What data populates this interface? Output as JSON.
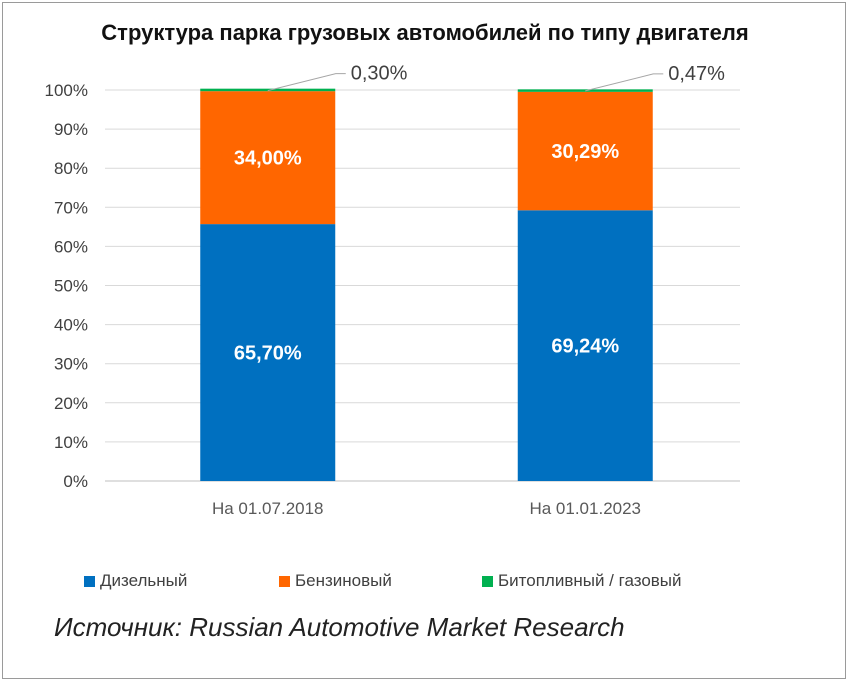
{
  "chart_data": {
    "type": "bar",
    "stacked": true,
    "title": "Структура парка грузовых автомобилей по типу двигателя",
    "categories": [
      "На 01.07.2018",
      "На 01.01.2023"
    ],
    "series": [
      {
        "name": "Дизельный",
        "values": [
          65.7,
          69.24
        ],
        "labels": [
          "65,70%",
          "69,24%"
        ],
        "color": "#0070C0"
      },
      {
        "name": "Бензиновый",
        "values": [
          34.0,
          30.29
        ],
        "labels": [
          "34,00%",
          "30,29%"
        ],
        "color": "#FF6600"
      },
      {
        "name": "Битопливный / газовый",
        "values": [
          0.3,
          0.47
        ],
        "labels": [
          "0,30%",
          "0,47%"
        ],
        "color": "#00B050"
      }
    ],
    "yticks": [
      "0%",
      "10%",
      "20%",
      "30%",
      "40%",
      "50%",
      "60%",
      "70%",
      "80%",
      "90%",
      "100%"
    ],
    "ylim": [
      0,
      100
    ],
    "grid": true,
    "legend_position": "bottom"
  },
  "source": "Источник: Russian Automotive Market Research"
}
